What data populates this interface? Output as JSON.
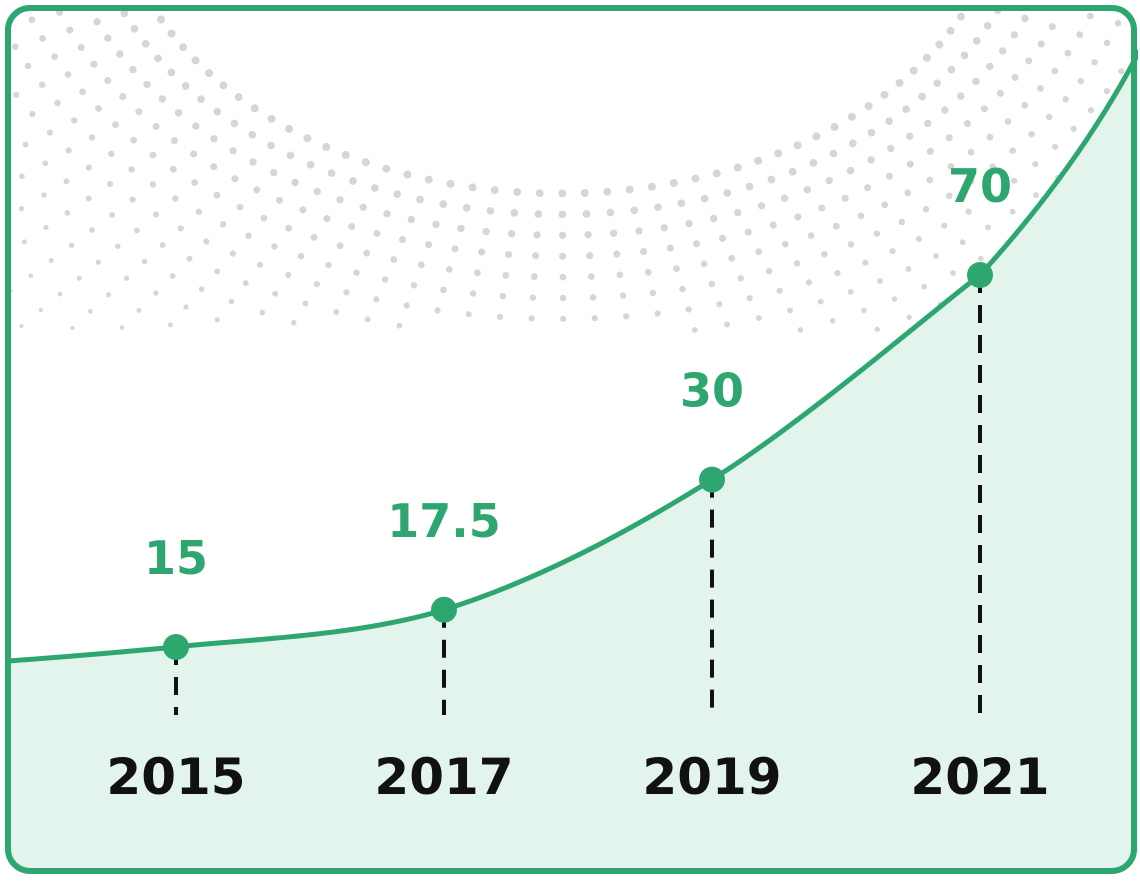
{
  "chart_data": {
    "type": "line",
    "categories": [
      "2015",
      "2017",
      "2019",
      "2021"
    ],
    "values": [
      15,
      17.5,
      30,
      70
    ],
    "color": "#2ea66f",
    "fill_color": "#e3f4ed",
    "label_color": "#111111"
  }
}
